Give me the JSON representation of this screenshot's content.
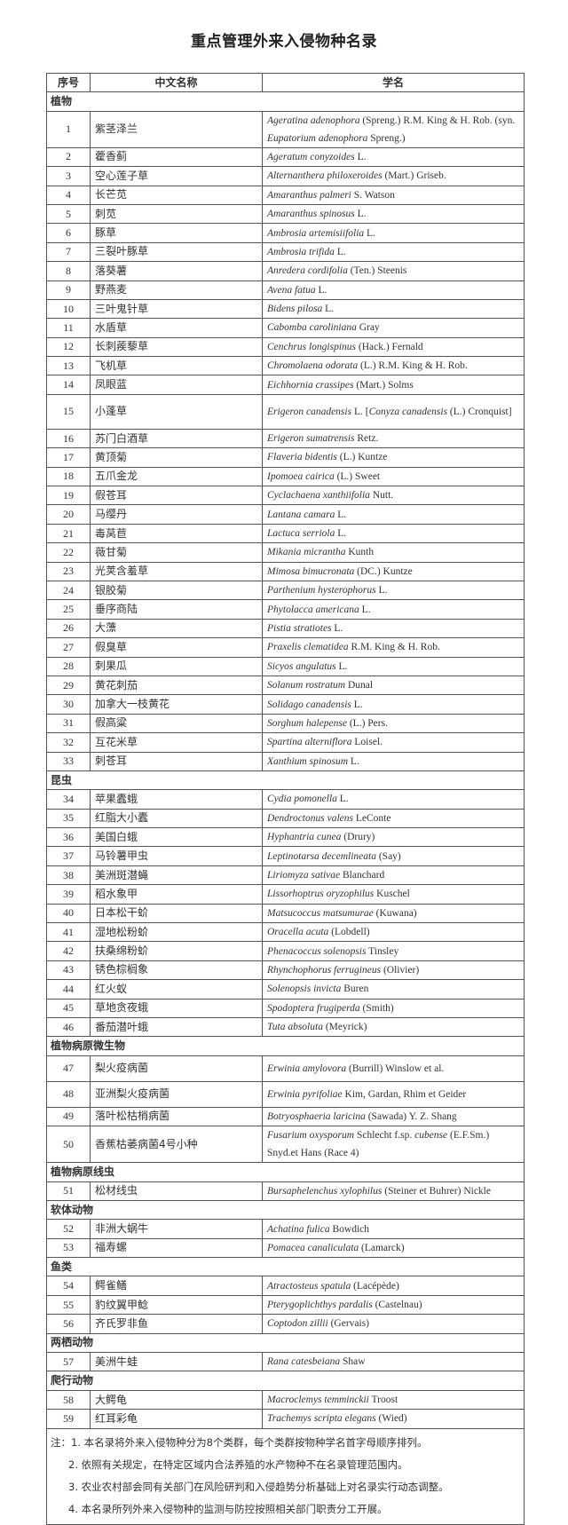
{
  "title": "重点管理外来入侵物种名录",
  "headers": [
    "序号",
    "中文名称",
    "学名"
  ],
  "groups": [
    {
      "category": "植物",
      "rows": [
        {
          "no": "1",
          "cn": "紫茎泽兰",
          "sci": [
            "Ageratina adenophora",
            " (Spreng.) R.M. King & H. Rob. (syn. ",
            "Eupatorium adenophora",
            " Spreng.)"
          ]
        },
        {
          "no": "2",
          "cn": "藿香蓟",
          "sci": [
            "Ageratum conyzoides",
            " L."
          ]
        },
        {
          "no": "3",
          "cn": "空心莲子草",
          "sci": [
            "Alternanthera philoxeroides",
            " (Mart.) Griseb."
          ]
        },
        {
          "no": "4",
          "cn": "长芒苋",
          "sci": [
            "Amaranthus palmeri",
            " S. Watson"
          ]
        },
        {
          "no": "5",
          "cn": "刺苋",
          "sci": [
            "Amaranthus spinosus",
            " L."
          ]
        },
        {
          "no": "6",
          "cn": "豚草",
          "sci": [
            "Ambrosia artemisiifolia",
            " L."
          ]
        },
        {
          "no": "7",
          "cn": "三裂叶豚草",
          "sci": [
            "Ambrosia trifida",
            " L."
          ]
        },
        {
          "no": "8",
          "cn": "落葵薯",
          "sci": [
            "Anredera cordifolia",
            " (Ten.) Steenis"
          ]
        },
        {
          "no": "9",
          "cn": "野燕麦",
          "sci": [
            "Avena fatua",
            " L."
          ]
        },
        {
          "no": "10",
          "cn": "三叶鬼针草",
          "sci": [
            "Bidens pilosa",
            " L."
          ]
        },
        {
          "no": "11",
          "cn": "水盾草",
          "sci": [
            "Cabomba caroliniana",
            " Gray"
          ]
        },
        {
          "no": "12",
          "cn": "长刺蒺藜草",
          "sci": [
            "Cenchrus longispinus",
            " (Hack.) Fernald"
          ]
        },
        {
          "no": "13",
          "cn": "飞机草",
          "sci": [
            "Chromolaena odorata",
            " (L.) R.M. King & H. Rob."
          ]
        },
        {
          "no": "14",
          "cn": "凤眼蓝",
          "sci": [
            "Eichhornia crassipes",
            " (Mart.) Solms"
          ]
        },
        {
          "no": "15",
          "cn": "小蓬草",
          "sci": [
            "Erigeron canadensis",
            " L. [",
            "Conyza canadensis",
            " (L.) Cronquist]"
          ]
        },
        {
          "no": "16",
          "cn": "苏门白酒草",
          "sci": [
            "Erigeron sumatrensis",
            " Retz."
          ]
        },
        {
          "no": "17",
          "cn": "黄顶菊",
          "sci": [
            "Flaveria bidentis",
            " (L.) Kuntze"
          ]
        },
        {
          "no": "18",
          "cn": "五爪金龙",
          "sci": [
            "Ipomoea cairica",
            " (L.) Sweet"
          ]
        },
        {
          "no": "19",
          "cn": "假苍耳",
          "sci": [
            "Cyclachaena xanthiifolia",
            " Nutt."
          ]
        },
        {
          "no": "20",
          "cn": "马缨丹",
          "sci": [
            "Lantana camara",
            " L."
          ]
        },
        {
          "no": "21",
          "cn": "毒莴苣",
          "sci": [
            "Lactuca serriola",
            " L."
          ]
        },
        {
          "no": "22",
          "cn": "薇甘菊",
          "sci": [
            "Mikania micrantha",
            " Kunth"
          ]
        },
        {
          "no": "23",
          "cn": "光荚含羞草",
          "sci": [
            "Mimosa bimucronata",
            " (DC.) Kuntze"
          ]
        },
        {
          "no": "24",
          "cn": "银胶菊",
          "sci": [
            "Parthenium hysterophorus",
            " L."
          ]
        },
        {
          "no": "25",
          "cn": "垂序商陆",
          "sci": [
            "Phytolacca americana",
            " L."
          ]
        },
        {
          "no": "26",
          "cn": "大薸",
          "sci": [
            "Pistia stratiotes",
            " L."
          ]
        },
        {
          "no": "27",
          "cn": "假臭草",
          "sci": [
            "Praxelis clematidea",
            " R.M. King & H. Rob."
          ]
        },
        {
          "no": "28",
          "cn": "刺果瓜",
          "sci": [
            "Sicyos angulatus",
            " L."
          ]
        },
        {
          "no": "29",
          "cn": "黄花刺茄",
          "sci": [
            "Solanum rostratum",
            " Dunal"
          ]
        },
        {
          "no": "30",
          "cn": "加拿大一枝黄花",
          "sci": [
            "Solidago canadensis",
            " L."
          ]
        },
        {
          "no": "31",
          "cn": "假高粱",
          "sci": [
            "Sorghum halepense",
            " (L.) Pers."
          ]
        },
        {
          "no": "32",
          "cn": "互花米草",
          "sci": [
            "Spartina alterniflora",
            " Loisel."
          ]
        },
        {
          "no": "33",
          "cn": "刺苍耳",
          "sci": [
            "Xanthium spinosum",
            " L."
          ]
        }
      ]
    },
    {
      "category": "昆虫",
      "rows": [
        {
          "no": "34",
          "cn": "苹果蠹蛾",
          "sci": [
            "Cydia pomonella",
            " L."
          ]
        },
        {
          "no": "35",
          "cn": "红脂大小蠹",
          "sci": [
            "Dendroctonus valens",
            " LeConte"
          ]
        },
        {
          "no": "36",
          "cn": "美国白蛾",
          "sci": [
            "Hyphantria cunea",
            " (Drury)"
          ]
        },
        {
          "no": "37",
          "cn": "马铃薯甲虫",
          "sci": [
            "Leptinotarsa decemlineata",
            " (Say)"
          ]
        },
        {
          "no": "38",
          "cn": "美洲斑潜蝇",
          "sci": [
            "Liriomyza sativae",
            " Blanchard"
          ]
        },
        {
          "no": "39",
          "cn": "稻水象甲",
          "sci": [
            "Lissorhoptrus oryzophilus",
            " Kuschel"
          ]
        },
        {
          "no": "40",
          "cn": "日本松干蚧",
          "sci": [
            "Matsucoccus matsumurae",
            " (Kuwana)"
          ]
        },
        {
          "no": "41",
          "cn": "湿地松粉蚧",
          "sci": [
            "Oracella acuta",
            " (Lobdell)"
          ]
        },
        {
          "no": "42",
          "cn": "扶桑绵粉蚧",
          "sci": [
            "Phenacoccus solenopsis",
            " Tinsley"
          ]
        },
        {
          "no": "43",
          "cn": "锈色棕榈象",
          "sci": [
            "Rhynchophorus ferrugineus",
            " (Olivier)"
          ]
        },
        {
          "no": "44",
          "cn": "红火蚁",
          "sci": [
            "Solenopsis invicta",
            " Buren"
          ]
        },
        {
          "no": "45",
          "cn": "草地贪夜蛾",
          "sci": [
            "Spodoptera frugiperda",
            " (Smith)"
          ]
        },
        {
          "no": "46",
          "cn": "番茄潜叶蛾",
          "sci": [
            "Tuta absoluta",
            " (Meyrick)"
          ]
        }
      ]
    },
    {
      "category": "植物病原微生物",
      "rows": [
        {
          "no": "47",
          "cn": "梨火疫病菌",
          "sci": [
            "Erwinia amylovora",
            " (Burrill) Winslow et al."
          ]
        },
        {
          "no": "48",
          "cn": "亚洲梨火疫病菌",
          "sci": [
            "Erwinia pyrifoliae",
            " Kim, Gardan, Rhim et Geider"
          ]
        },
        {
          "no": "49",
          "cn": "落叶松枯梢病菌",
          "sci": [
            "Botryosphaeria laricina",
            " (Sawada) Y. Z. Shang"
          ]
        },
        {
          "no": "50",
          "cn": "香蕉枯萎病菌4号小种",
          "sci": [
            "Fusarium oxysporum",
            " Schlecht f.sp. ",
            "cubense",
            " (E.F.Sm.) Snyd.et Hans (Race 4)"
          ]
        }
      ]
    },
    {
      "category": "植物病原线虫",
      "rows": [
        {
          "no": "51",
          "cn": "松材线虫",
          "sci": [
            "Bursaphelenchus xylophilus",
            " (Steiner et Buhrer) Nickle"
          ]
        }
      ]
    },
    {
      "category": "软体动物",
      "rows": [
        {
          "no": "52",
          "cn": "非洲大蜗牛",
          "sci": [
            "Achatina fulica",
            " Bowdich"
          ]
        },
        {
          "no": "53",
          "cn": "福寿螺",
          "sci": [
            "Pomacea canaliculata",
            " (Lamarck)"
          ]
        }
      ]
    },
    {
      "category": "鱼类",
      "rows": [
        {
          "no": "54",
          "cn": "鳄雀鳝",
          "sci": [
            "Atractosteus spatula",
            " (Lacépède)"
          ]
        },
        {
          "no": "55",
          "cn": "豹纹翼甲鲶",
          "sci": [
            "Pterygoplichthys pardalis",
            " (Castelnau)"
          ]
        },
        {
          "no": "56",
          "cn": "齐氏罗非鱼",
          "sci": [
            "Coptodon zillii",
            " (Gervais)"
          ]
        }
      ]
    },
    {
      "category": "两栖动物",
      "rows": [
        {
          "no": "57",
          "cn": "美洲牛蛙",
          "sci": [
            "Rana catesbeiana",
            " Shaw"
          ]
        }
      ]
    },
    {
      "category": "爬行动物",
      "rows": [
        {
          "no": "58",
          "cn": "大鳄龟",
          "sci": [
            "Macroclemys temminckii",
            " Troost"
          ]
        },
        {
          "no": "59",
          "cn": "红耳彩龟",
          "sci": [
            "Trachemys scripta elegans",
            " (Wied)"
          ]
        }
      ]
    }
  ],
  "notes": [
    "注：1. 本名录将外来入侵物种分为8个类群，每个类群按物种学名首字母顺序排列。",
    "2. 依照有关规定，在特定区域内合法养殖的水产物种不在名录管理范围内。",
    "3. 农业农村部会同有关部门在风险研判和入侵趋势分析基础上对名录实行动态调整。",
    "4. 本名录所列外来入侵物种的监测与防控按照相关部门职责分工开展。"
  ]
}
